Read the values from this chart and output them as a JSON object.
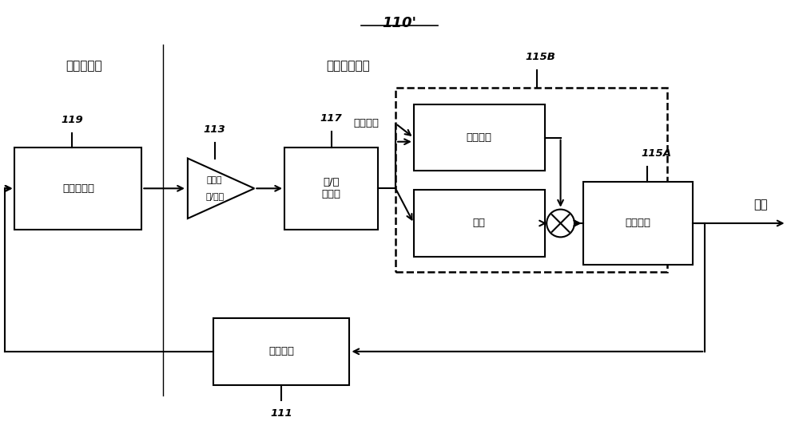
{
  "title": "110'",
  "bg_color": "#ffffff",
  "label_mems": "微机电系统",
  "label_asic": "专用集成电路",
  "label_output": "输出",
  "label_drive_amp": "驱动振幅",
  "box_119_label": "驱动共振器",
  "box_113_line1": "驱动电",
  "box_113_line2": "容/电压",
  "box_117_line1": "模/数",
  "box_117_line2": "转换器",
  "box_amp_ctrl_label": "振幅控制",
  "box_gain_label": "增益",
  "box_drive_phase_label": "驱动相位",
  "box_drive_act_label": "驱动致动",
  "ref_119": "119",
  "ref_113": "113",
  "ref_117": "117",
  "ref_115B": "115B",
  "ref_115A": "115A",
  "ref_111": "111"
}
